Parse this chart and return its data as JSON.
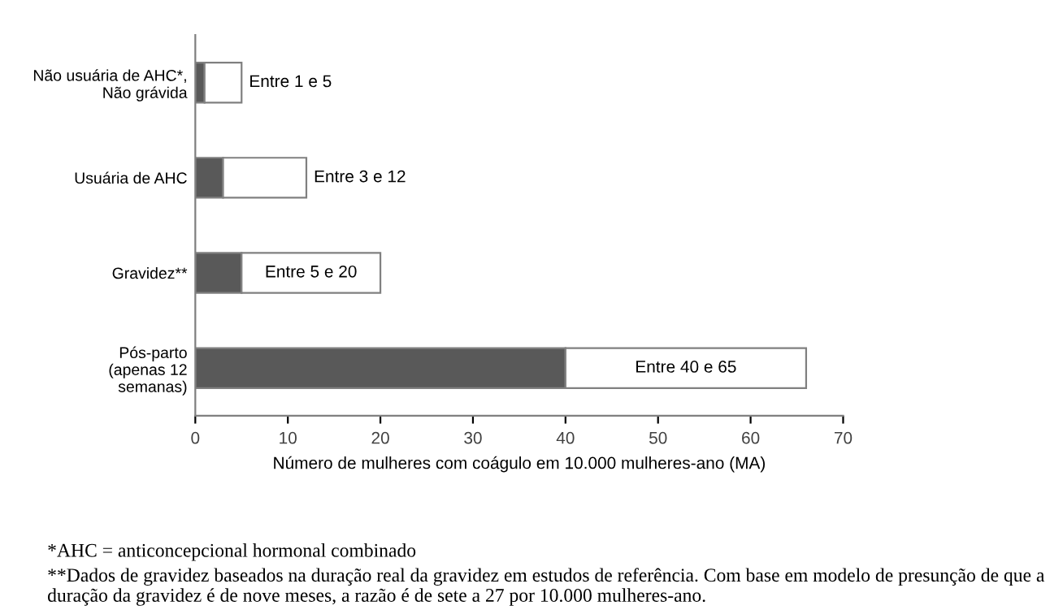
{
  "chart_data": {
    "type": "bar",
    "orientation": "horizontal",
    "stacked": true,
    "categories": [
      "Não usuária de AHC*,\nNão grávida",
      "Usuária de AHC",
      "Gravidez**",
      "Pós-parto\n(apenas 12\nsemanas)"
    ],
    "series": [
      {
        "color": "#595959",
        "values": [
          1,
          3,
          5,
          40
        ]
      },
      {
        "color": "#ffffff",
        "values": [
          4,
          9,
          15,
          26
        ],
        "value_labels": [
          "Entre 1 e 5",
          "Entre 3 e 12",
          "Entre 5 e 20",
          "Entre 40 e 65"
        ]
      }
    ],
    "xlabel": "Número de mulheres com coágulo em 10.000 mulheres-ano (MA)",
    "xlim": [
      0,
      70
    ],
    "xticks": [
      0,
      10,
      20,
      30,
      40,
      50,
      60,
      70
    ],
    "grid": false,
    "legend": false,
    "annotations": [
      "*AHC = anticoncepcional hormonal combinado",
      "**Dados de gravidez baseados na duração real da gravidez em estudos de referência. Com base em modelo de presunção de que a duração da gravidez é de nove meses, a razão é de sete a 27 por 10.000 mulheres-ano."
    ]
  }
}
